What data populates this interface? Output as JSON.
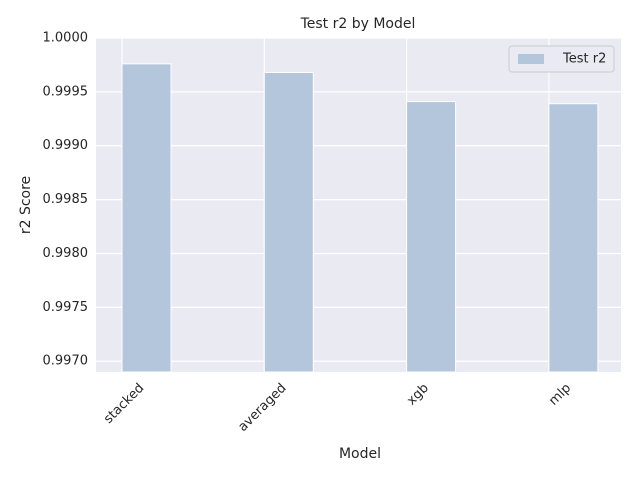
{
  "chart_data": {
    "type": "bar",
    "title": "Test r2 by Model",
    "x_label": "Model",
    "y_label": "r2 Score",
    "categories": [
      "stacked",
      "averaged",
      "xgb",
      "mlp"
    ],
    "series": [
      {
        "name": "Test r2",
        "color": "#b3c6db",
        "values": [
          0.99976,
          0.99968,
          0.99941,
          0.99939
        ]
      }
    ],
    "ylim": [
      0.9969,
      1.0
    ],
    "yticks": [
      {
        "value": 0.997,
        "label": "0.9970"
      },
      {
        "value": 0.9975,
        "label": "0.9975"
      },
      {
        "value": 0.998,
        "label": "0.9980"
      },
      {
        "value": 0.9985,
        "label": "0.9985"
      },
      {
        "value": 0.999,
        "label": "0.9990"
      },
      {
        "value": 0.9995,
        "label": "0.9995"
      },
      {
        "value": 1.0,
        "label": "1.0000"
      }
    ],
    "grid": true,
    "legend": "upper right"
  }
}
